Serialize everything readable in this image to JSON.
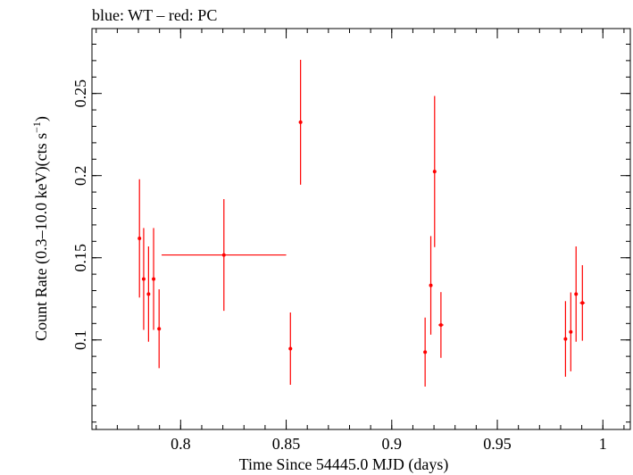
{
  "chart_data": {
    "type": "scatter",
    "title": "blue: WT – red: PC",
    "xlabel": "Time Since 54445.0 MJD (days)",
    "ylabel_main": "Count Rate (0.3–10.0 keV)(cts s",
    "ylabel_sup": "−1",
    "ylabel_close": ")",
    "xlim": [
      0.758,
      1.013
    ],
    "ylim": [
      0.0455,
      0.2895
    ],
    "x_ticks": [
      {
        "value": 0.8,
        "label": "0.8"
      },
      {
        "value": 0.85,
        "label": "0.85"
      },
      {
        "value": 0.9,
        "label": "0.9"
      },
      {
        "value": 0.95,
        "label": "0.95"
      },
      {
        "value": 1.0,
        "label": "1"
      }
    ],
    "y_ticks": [
      {
        "value": 0.1,
        "label": "0.1"
      },
      {
        "value": 0.15,
        "label": "0.15"
      },
      {
        "value": 0.2,
        "label": "0.2"
      },
      {
        "value": 0.25,
        "label": "0.25"
      }
    ],
    "x_minor_step": 0.01,
    "y_minor_step": 0.01,
    "grid": false,
    "series": [
      {
        "color": "#ff0000",
        "points": [
          {
            "x": 0.7805,
            "xerr": 0.0006,
            "y": 0.1618,
            "yerr": 0.036
          },
          {
            "x": 0.7825,
            "xerr": 0.0006,
            "y": 0.1371,
            "yerr": 0.031
          },
          {
            "x": 0.7848,
            "xerr": 0.0006,
            "y": 0.1279,
            "yerr": 0.029
          },
          {
            "x": 0.7872,
            "xerr": 0.0006,
            "y": 0.1371,
            "yerr": 0.031
          },
          {
            "x": 0.7898,
            "xerr": 0.0008,
            "y": 0.1068,
            "yerr": 0.024
          },
          {
            "x": 0.8205,
            "xerr": 0.0295,
            "y": 0.1517,
            "yerr": 0.034
          },
          {
            "x": 0.852,
            "xerr": 0.0008,
            "y": 0.0947,
            "yerr": 0.022
          },
          {
            "x": 0.8568,
            "xerr": 0.0008,
            "y": 0.2325,
            "yerr": 0.038
          },
          {
            "x": 0.9158,
            "xerr": 0.0008,
            "y": 0.0926,
            "yerr": 0.021
          },
          {
            "x": 0.9185,
            "xerr": 0.0006,
            "y": 0.1332,
            "yerr": 0.03
          },
          {
            "x": 0.9203,
            "xerr": 0.0006,
            "y": 0.2025,
            "yerr": 0.046
          },
          {
            "x": 0.9233,
            "xerr": 0.0012,
            "y": 0.1091,
            "yerr": 0.02
          },
          {
            "x": 0.9823,
            "xerr": 0.0006,
            "y": 0.1006,
            "yerr": 0.023
          },
          {
            "x": 0.9848,
            "xerr": 0.0006,
            "y": 0.1049,
            "yerr": 0.024
          },
          {
            "x": 0.9873,
            "xerr": 0.0006,
            "y": 0.1279,
            "yerr": 0.029
          },
          {
            "x": 0.9903,
            "xerr": 0.0012,
            "y": 0.1225,
            "yerr": 0.023
          }
        ]
      }
    ]
  }
}
